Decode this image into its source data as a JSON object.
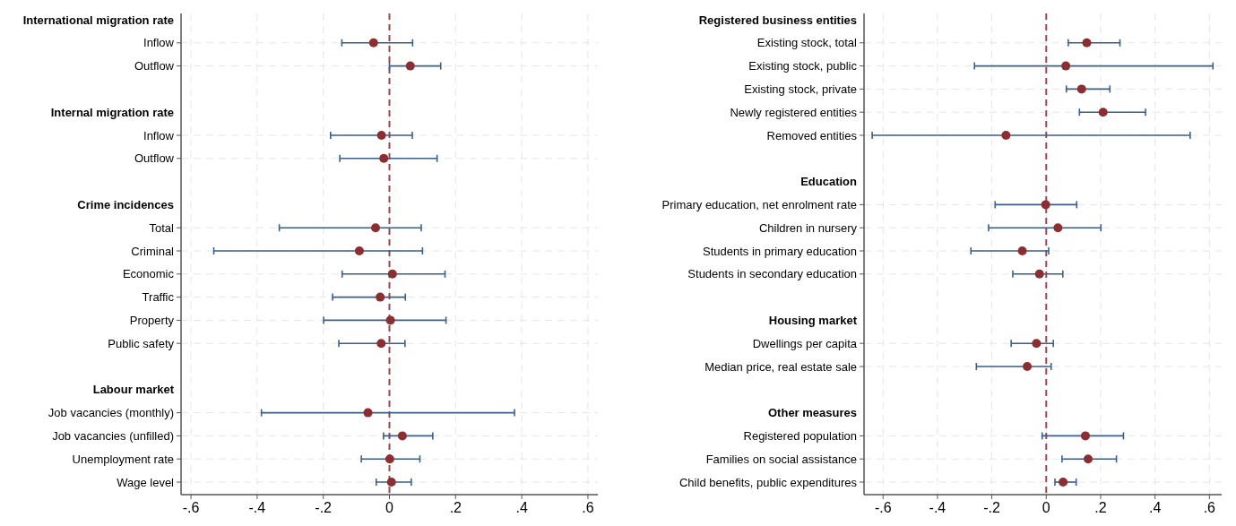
{
  "chart_data": [
    {
      "type": "scatter",
      "orientation": "horizontal",
      "categories": [
        "International migration rate",
        "Inflow",
        "Outflow",
        null,
        "Internal migration rate",
        "Inflow",
        "Outflow",
        null,
        "Crime incidences",
        "Total",
        "Criminal",
        "Economic",
        "Traffic",
        "Property",
        "Public safety",
        null,
        "Labour market",
        "Job vacancies (monthly)",
        "Job vacancies (unfilled)",
        "Unemployment rate",
        "Wage level"
      ],
      "series": [
        {
          "color": "#8b2e32",
          "values": [
            null,
            -0.048,
            0.063,
            null,
            null,
            -0.024,
            -0.017,
            null,
            null,
            -0.042,
            -0.091,
            0.009,
            -0.028,
            0.003,
            -0.025,
            null,
            null,
            -0.065,
            0.039,
            0.001,
            0.006
          ],
          "errors": [
            null,
            [
              -0.144,
              0.07
            ],
            [
              0.0,
              0.155
            ],
            null,
            null,
            [
              -0.178,
              0.069
            ],
            [
              -0.15,
              0.144
            ],
            null,
            null,
            [
              -0.333,
              0.096
            ],
            [
              -0.531,
              0.1
            ],
            [
              -0.143,
              0.168
            ],
            [
              -0.172,
              0.048
            ],
            [
              -0.199,
              0.171
            ],
            [
              -0.153,
              0.047
            ],
            null,
            null,
            [
              -0.387,
              0.378
            ],
            [
              -0.018,
              0.131
            ],
            [
              -0.085,
              0.092
            ],
            [
              -0.04,
              0.066
            ]
          ]
        }
      ],
      "xlim": [
        -0.63,
        0.63
      ],
      "xticks": [
        {
          "value": -0.6,
          "label": "-.6"
        },
        {
          "value": -0.4,
          "label": "-.4"
        },
        {
          "value": -0.2,
          "label": "-.2"
        },
        0,
        {
          "value": 0.2,
          "label": ".2"
        },
        {
          "value": 0.4,
          "label": ".4"
        },
        {
          "value": 0.6,
          "label": ".6"
        }
      ],
      "ref_lines": [
        {
          "axis": "x",
          "value": 0,
          "color": "#a0454a",
          "line_style": "dashed"
        }
      ],
      "grid": true,
      "marker": "circle"
    },
    {
      "type": "scatter",
      "orientation": "horizontal",
      "categories": [
        "Registered business entities",
        "Existing stock, total",
        "Existing stock, public",
        "Existing stock, private",
        "Newly registered entities",
        "Removed entities",
        null,
        "Education",
        "Primary education, net enrolment rate",
        "Children in nursery",
        "Students in primary education",
        "Students in secondary education",
        null,
        "Housing market",
        "Dwellings per capita",
        "Median price, real estate sale",
        null,
        "Other measures",
        "Registered population",
        "Families on social assistance",
        "Child benefits, public expenditures"
      ],
      "series": [
        {
          "color": "#8b2e32",
          "values": [
            null,
            0.149,
            0.072,
            0.13,
            0.209,
            -0.148,
            null,
            null,
            -0.002,
            0.043,
            -0.088,
            -0.025,
            null,
            null,
            -0.036,
            -0.07,
            null,
            null,
            0.144,
            0.154,
            0.062
          ],
          "errors": [
            null,
            [
              0.081,
              0.271
            ],
            [
              -0.264,
              0.613
            ],
            [
              0.074,
              0.234
            ],
            [
              0.122,
              0.365
            ],
            [
              -0.64,
              0.529
            ],
            null,
            null,
            [
              -0.188,
              0.112
            ],
            [
              -0.212,
              0.201
            ],
            [
              -0.277,
              0.009
            ],
            [
              -0.123,
              0.061
            ],
            null,
            null,
            [
              -0.129,
              0.026
            ],
            [
              -0.257,
              0.018
            ],
            null,
            null,
            [
              -0.015,
              0.284
            ],
            [
              0.058,
              0.258
            ],
            [
              0.032,
              0.11
            ]
          ]
        }
      ],
      "xlim": [
        -0.67,
        0.645
      ],
      "xticks": [
        {
          "value": -0.6,
          "label": "-.6"
        },
        {
          "value": -0.4,
          "label": "-.4"
        },
        {
          "value": -0.2,
          "label": "-.2"
        },
        0,
        {
          "value": 0.2,
          "label": ".2"
        },
        {
          "value": 0.4,
          "label": ".4"
        },
        {
          "value": 0.6,
          "label": ".6"
        }
      ],
      "ref_lines": [
        {
          "axis": "x",
          "value": 0,
          "color": "#a0454a",
          "line_style": "dashed"
        }
      ],
      "grid": true,
      "marker": "circle"
    }
  ]
}
